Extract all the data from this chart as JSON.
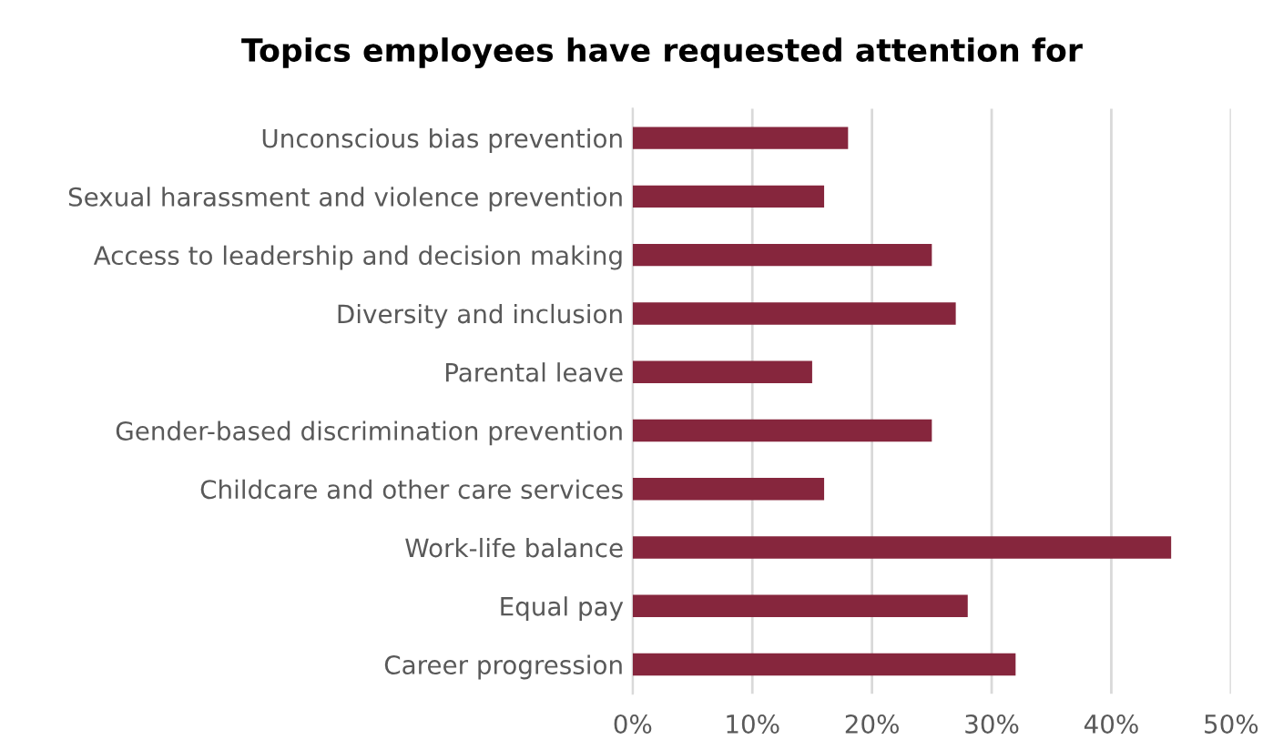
{
  "chart_data": {
    "type": "bar",
    "orientation": "horizontal",
    "title": "Topics employees have requested attention for",
    "categories": [
      "Unconscious bias prevention",
      "Sexual harassment and violence prevention",
      "Access to leadership and decision making",
      "Diversity and inclusion",
      "Parental leave",
      "Gender-based discrimination prevention",
      "Childcare and other care services",
      "Work-life balance",
      "Equal pay",
      "Career progression"
    ],
    "values": [
      18,
      16,
      25,
      27,
      15,
      25,
      16,
      45,
      28,
      32
    ],
    "color": "#86263d",
    "xlim": [
      0,
      50
    ],
    "xticks": [
      {
        "value": 0,
        "label": "0%"
      },
      {
        "value": 10,
        "label": "10%"
      },
      {
        "value": 20,
        "label": "20%"
      },
      {
        "value": 30,
        "label": "30%"
      },
      {
        "value": 40,
        "label": "40%"
      },
      {
        "value": 50,
        "label": "50%"
      }
    ],
    "grid": "x",
    "legend": false
  }
}
